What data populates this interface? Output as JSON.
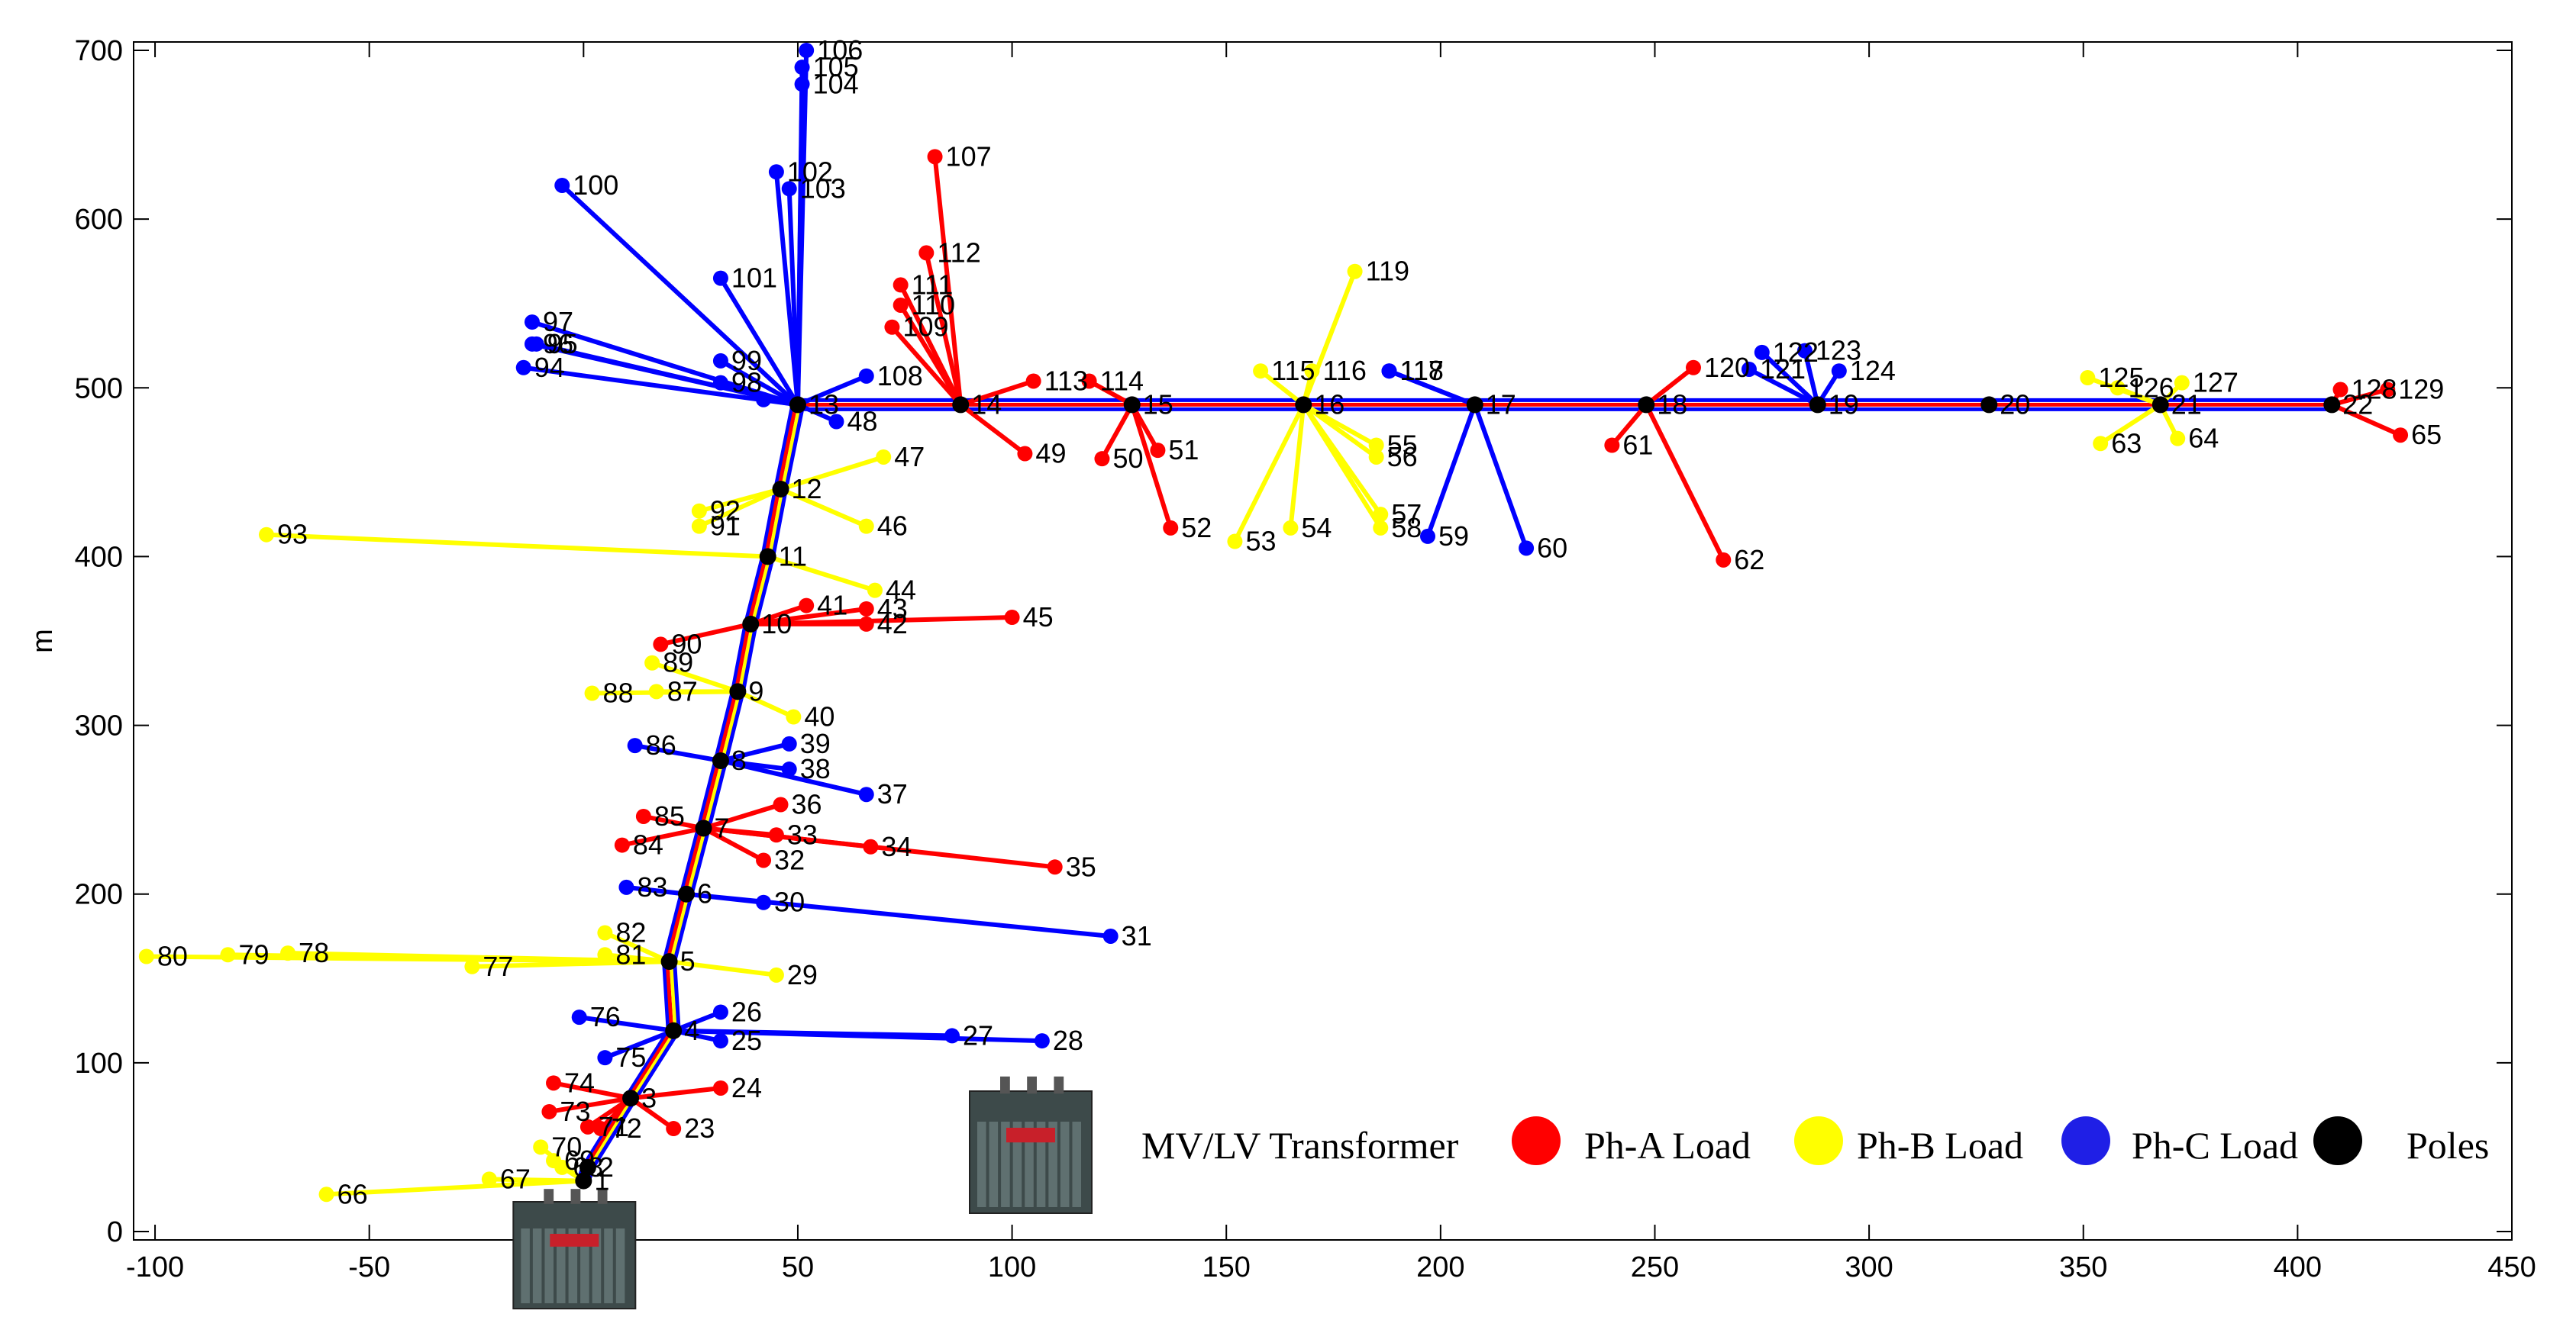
{
  "chart_data": {
    "type": "scatter",
    "title": "",
    "xlabel": "",
    "ylabel": "m",
    "xlim": [
      -105,
      450
    ],
    "ylim": [
      -5,
      705
    ],
    "xticks": [
      -100,
      -50,
      0,
      50,
      100,
      150,
      200,
      250,
      300,
      350,
      400,
      450
    ],
    "yticks": [
      0,
      100,
      200,
      300,
      400,
      500,
      600,
      700
    ],
    "grid": false,
    "legend": {
      "placement": "bottom-right",
      "transformer_label": "MV/LV Transformer",
      "entries": [
        {
          "label": "Ph-A Load",
          "color": "#ff0000"
        },
        {
          "label": "Ph-B Load",
          "color": "#ffff00"
        },
        {
          "label": "Ph-C Load",
          "color": "#1f1fe6"
        },
        {
          "label": "Poles",
          "color": "#000000"
        }
      ]
    },
    "colors": {
      "A": "#ff0000",
      "B": "#ffff00",
      "C": "#0000ff",
      "pole": "#000000"
    },
    "transformers": [
      {
        "x": 0,
        "y": 0
      },
      {
        "x": 100,
        "y": 70
      }
    ],
    "trunk": [
      {
        "id": "1",
        "x": 0,
        "y": 30
      },
      {
        "id": "2",
        "x": 1,
        "y": 38
      },
      {
        "id": "3",
        "x": 11,
        "y": 79
      },
      {
        "id": "4",
        "x": 21,
        "y": 119
      },
      {
        "id": "5",
        "x": 20,
        "y": 160
      },
      {
        "id": "6",
        "x": 24,
        "y": 200
      },
      {
        "id": "7",
        "x": 28,
        "y": 239
      },
      {
        "id": "8",
        "x": 32,
        "y": 279
      },
      {
        "id": "9",
        "x": 36,
        "y": 320
      },
      {
        "id": "10",
        "x": 39,
        "y": 360
      },
      {
        "id": "11",
        "x": 43,
        "y": 400
      },
      {
        "id": "12",
        "x": 46,
        "y": 440
      },
      {
        "id": "13",
        "x": 50,
        "y": 490
      }
    ],
    "mains": [
      {
        "id": "14",
        "x": 88,
        "y": 490
      },
      {
        "id": "15",
        "x": 128,
        "y": 490
      },
      {
        "id": "16",
        "x": 168,
        "y": 490
      },
      {
        "id": "17",
        "x": 208,
        "y": 490
      },
      {
        "id": "18",
        "x": 248,
        "y": 490
      },
      {
        "id": "19",
        "x": 288,
        "y": 490
      },
      {
        "id": "20",
        "x": 328,
        "y": 490
      },
      {
        "id": "21",
        "x": 368,
        "y": 490
      },
      {
        "id": "22",
        "x": 408,
        "y": 490
      }
    ],
    "loads": [
      {
        "id": "23",
        "pole": "3",
        "phase": "A",
        "x": 21,
        "y": 61
      },
      {
        "id": "24",
        "pole": "3",
        "phase": "A",
        "x": 32,
        "y": 85
      },
      {
        "id": "71",
        "pole": "3",
        "phase": "A",
        "x": 1,
        "y": 62
      },
      {
        "id": "72",
        "pole": "3",
        "phase": "A",
        "x": 4,
        "y": 61
      },
      {
        "id": "73",
        "pole": "3",
        "phase": "A",
        "x": -8,
        "y": 71
      },
      {
        "id": "74",
        "pole": "3",
        "phase": "A",
        "x": -7,
        "y": 88
      },
      {
        "id": "25",
        "pole": "4",
        "phase": "C",
        "x": 32,
        "y": 113
      },
      {
        "id": "26",
        "pole": "4",
        "phase": "C",
        "x": 32,
        "y": 130
      },
      {
        "id": "27",
        "pole": "4",
        "phase": "C",
        "x": 86,
        "y": 116
      },
      {
        "id": "28",
        "pole": "4",
        "phase": "C",
        "x": 107,
        "y": 113
      },
      {
        "id": "75",
        "pole": "4",
        "phase": "C",
        "x": 5,
        "y": 103
      },
      {
        "id": "76",
        "pole": "4",
        "phase": "C",
        "x": -1,
        "y": 127
      },
      {
        "id": "29",
        "pole": "5",
        "phase": "B",
        "x": 45,
        "y": 152
      },
      {
        "id": "77",
        "pole": "5",
        "phase": "B",
        "x": -26,
        "y": 157
      },
      {
        "id": "78",
        "pole": "5",
        "phase": "B",
        "x": -69,
        "y": 165
      },
      {
        "id": "79",
        "pole": "5",
        "phase": "B",
        "x": -83,
        "y": 164
      },
      {
        "id": "80",
        "pole": "5",
        "phase": "B",
        "x": -102,
        "y": 163
      },
      {
        "id": "81",
        "pole": "5",
        "phase": "B",
        "x": 5,
        "y": 164
      },
      {
        "id": "82",
        "pole": "5",
        "phase": "B",
        "x": 5,
        "y": 177
      },
      {
        "id": "30",
        "pole": "6",
        "phase": "C",
        "x": 42,
        "y": 195
      },
      {
        "id": "31",
        "pole": "6",
        "phase": "C",
        "x": 123,
        "y": 175
      },
      {
        "id": "83",
        "pole": "6",
        "phase": "C",
        "x": 10,
        "y": 204
      },
      {
        "id": "32",
        "pole": "7",
        "phase": "A",
        "x": 42,
        "y": 220
      },
      {
        "id": "33",
        "pole": "7",
        "phase": "A",
        "x": 45,
        "y": 235
      },
      {
        "id": "34",
        "pole": "7",
        "phase": "A",
        "x": 67,
        "y": 228
      },
      {
        "id": "35",
        "pole": "7",
        "phase": "A",
        "x": 110,
        "y": 216
      },
      {
        "id": "36",
        "pole": "7",
        "phase": "A",
        "x": 46,
        "y": 253
      },
      {
        "id": "84",
        "pole": "7",
        "phase": "A",
        "x": 9,
        "y": 229
      },
      {
        "id": "85",
        "pole": "7",
        "phase": "A",
        "x": 14,
        "y": 246
      },
      {
        "id": "37",
        "pole": "8",
        "phase": "C",
        "x": 66,
        "y": 259
      },
      {
        "id": "38",
        "pole": "8",
        "phase": "C",
        "x": 48,
        "y": 274
      },
      {
        "id": "39",
        "pole": "8",
        "phase": "C",
        "x": 48,
        "y": 289
      },
      {
        "id": "86",
        "pole": "8",
        "phase": "C",
        "x": 12,
        "y": 288
      },
      {
        "id": "40",
        "pole": "9",
        "phase": "B",
        "x": 49,
        "y": 305
      },
      {
        "id": "87",
        "pole": "9",
        "phase": "B",
        "x": 17,
        "y": 320
      },
      {
        "id": "88",
        "pole": "9",
        "phase": "B",
        "x": 2,
        "y": 319
      },
      {
        "id": "89",
        "pole": "9",
        "phase": "B",
        "x": 16,
        "y": 337
      },
      {
        "id": "41",
        "pole": "10",
        "phase": "A",
        "x": 52,
        "y": 371
      },
      {
        "id": "42",
        "pole": "10",
        "phase": "A",
        "x": 66,
        "y": 360
      },
      {
        "id": "43",
        "pole": "10",
        "phase": "A",
        "x": 66,
        "y": 369
      },
      {
        "id": "45",
        "pole": "10",
        "phase": "A",
        "x": 100,
        "y": 364
      },
      {
        "id": "90",
        "pole": "10",
        "phase": "A",
        "x": 18,
        "y": 348
      },
      {
        "id": "44",
        "pole": "11",
        "phase": "B",
        "x": 68,
        "y": 380
      },
      {
        "id": "93",
        "pole": "11",
        "phase": "B",
        "x": -74,
        "y": 413
      },
      {
        "id": "46",
        "pole": "12",
        "phase": "B",
        "x": 66,
        "y": 418
      },
      {
        "id": "47",
        "pole": "12",
        "phase": "B",
        "x": 70,
        "y": 459
      },
      {
        "id": "91",
        "pole": "12",
        "phase": "B",
        "x": 27,
        "y": 418
      },
      {
        "id": "92",
        "pole": "12",
        "phase": "B",
        "x": 27,
        "y": 427
      },
      {
        "id": "48",
        "pole": "13",
        "phase": "C",
        "x": 59,
        "y": 480
      },
      {
        "id": "94",
        "pole": "13",
        "phase": "C",
        "x": -14,
        "y": 512
      },
      {
        "id": "95",
        "pole": "13",
        "phase": "C",
        "x": -11,
        "y": 526
      },
      {
        "id": "96",
        "pole": "13",
        "phase": "C",
        "x": -12,
        "y": 526
      },
      {
        "id": "97",
        "pole": "13",
        "phase": "C",
        "x": -12,
        "y": 539
      },
      {
        "id": "98",
        "pole": "13",
        "phase": "C",
        "x": 32,
        "y": 503
      },
      {
        "id": "99",
        "pole": "13",
        "phase": "C",
        "x": 32,
        "y": 516
      },
      {
        "id": "100",
        "pole": "13",
        "phase": "C",
        "x": -5,
        "y": 620
      },
      {
        "id": "101",
        "pole": "13",
        "phase": "C",
        "x": 32,
        "y": 565
      },
      {
        "id": "102",
        "pole": "13",
        "phase": "C",
        "x": 45,
        "y": 628
      },
      {
        "id": "103",
        "pole": "13",
        "phase": "C",
        "x": 48,
        "y": 618
      },
      {
        "id": "104",
        "pole": "13",
        "phase": "C",
        "x": 51,
        "y": 680
      },
      {
        "id": "105",
        "pole": "13",
        "phase": "C",
        "x": 51,
        "y": 690
      },
      {
        "id": "106",
        "pole": "13",
        "phase": "C",
        "x": 52,
        "y": 700
      },
      {
        "id": "108",
        "pole": "13",
        "phase": "C",
        "x": 66,
        "y": 507
      },
      {
        "id": "13b",
        "pole": "13",
        "phase": "C",
        "x": 42,
        "y": 493,
        "label": ""
      },
      {
        "id": "49",
        "pole": "14",
        "phase": "A",
        "x": 103,
        "y": 461
      },
      {
        "id": "107",
        "pole": "14",
        "phase": "A",
        "x": 82,
        "y": 637
      },
      {
        "id": "109",
        "pole": "14",
        "phase": "A",
        "x": 72,
        "y": 536
      },
      {
        "id": "110",
        "pole": "14",
        "phase": "A",
        "x": 74,
        "y": 549
      },
      {
        "id": "111",
        "pole": "14",
        "phase": "A",
        "x": 74,
        "y": 561
      },
      {
        "id": "112",
        "pole": "14",
        "phase": "A",
        "x": 80,
        "y": 580
      },
      {
        "id": "113",
        "pole": "14",
        "phase": "A",
        "x": 105,
        "y": 504
      },
      {
        "id": "50",
        "pole": "15",
        "phase": "A",
        "x": 121,
        "y": 458
      },
      {
        "id": "51",
        "pole": "15",
        "phase": "A",
        "x": 134,
        "y": 463
      },
      {
        "id": "52",
        "pole": "15",
        "phase": "A",
        "x": 137,
        "y": 417
      },
      {
        "id": "114",
        "pole": "15",
        "phase": "A",
        "x": 118,
        "y": 504
      },
      {
        "id": "53",
        "pole": "16",
        "phase": "B",
        "x": 152,
        "y": 409
      },
      {
        "id": "54",
        "pole": "16",
        "phase": "B",
        "x": 165,
        "y": 417
      },
      {
        "id": "55",
        "pole": "16",
        "phase": "B",
        "x": 185,
        "y": 466
      },
      {
        "id": "56",
        "pole": "16",
        "phase": "B",
        "x": 185,
        "y": 459
      },
      {
        "id": "57",
        "pole": "16",
        "phase": "B",
        "x": 186,
        "y": 425
      },
      {
        "id": "58",
        "pole": "16",
        "phase": "B",
        "x": 186,
        "y": 417
      },
      {
        "id": "115",
        "pole": "16",
        "phase": "B",
        "x": 158,
        "y": 510
      },
      {
        "id": "116",
        "pole": "16",
        "phase": "B",
        "x": 170,
        "y": 510
      },
      {
        "id": "119",
        "pole": "16",
        "phase": "B",
        "x": 180,
        "y": 569
      },
      {
        "id": "59",
        "pole": "17",
        "phase": "C",
        "x": 197,
        "y": 412
      },
      {
        "id": "60",
        "pole": "17",
        "phase": "C",
        "x": 220,
        "y": 405
      },
      {
        "id": "117",
        "pole": "17",
        "phase": "C",
        "x": 188,
        "y": 510
      },
      {
        "id": "118",
        "pole": "17",
        "phase": "C",
        "x": 188,
        "y": 510
      },
      {
        "id": "61",
        "pole": "18",
        "phase": "A",
        "x": 240,
        "y": 466
      },
      {
        "id": "62",
        "pole": "18",
        "phase": "A",
        "x": 266,
        "y": 398
      },
      {
        "id": "120",
        "pole": "18",
        "phase": "A",
        "x": 259,
        "y": 512
      },
      {
        "id": "121",
        "pole": "19",
        "phase": "C",
        "x": 272,
        "y": 511
      },
      {
        "id": "122",
        "pole": "19",
        "phase": "C",
        "x": 275,
        "y": 521
      },
      {
        "id": "123",
        "pole": "19",
        "phase": "C",
        "x": 285,
        "y": 522
      },
      {
        "id": "124",
        "pole": "19",
        "phase": "C",
        "x": 293,
        "y": 510
      },
      {
        "id": "63",
        "pole": "21",
        "phase": "B",
        "x": 354,
        "y": 467
      },
      {
        "id": "64",
        "pole": "21",
        "phase": "B",
        "x": 372,
        "y": 470
      },
      {
        "id": "125",
        "pole": "21",
        "phase": "B",
        "x": 351,
        "y": 506
      },
      {
        "id": "126",
        "pole": "21",
        "phase": "B",
        "x": 358,
        "y": 500
      },
      {
        "id": "127",
        "pole": "21",
        "phase": "B",
        "x": 373,
        "y": 503
      },
      {
        "id": "65",
        "pole": "22",
        "phase": "A",
        "x": 424,
        "y": 472
      },
      {
        "id": "128",
        "pole": "22",
        "phase": "A",
        "x": 410,
        "y": 499
      },
      {
        "id": "129",
        "pole": "22",
        "phase": "A",
        "x": 421,
        "y": 499
      },
      {
        "id": "66",
        "pole": "1",
        "phase": "B",
        "x": -60,
        "y": 22
      },
      {
        "id": "67",
        "pole": "1",
        "phase": "B",
        "x": -22,
        "y": 31
      },
      {
        "id": "68",
        "pole": "1",
        "phase": "B",
        "x": -5,
        "y": 38
      },
      {
        "id": "69",
        "pole": "1",
        "phase": "B",
        "x": -7,
        "y": 42
      },
      {
        "id": "70",
        "pole": "1",
        "phase": "B",
        "x": -10,
        "y": 50
      }
    ]
  }
}
